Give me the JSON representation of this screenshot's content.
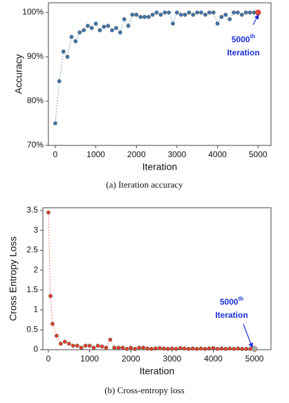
{
  "chart_data": [
    {
      "type": "line",
      "caption": "(a) Iteration accuracy",
      "xlabel": "Iteration",
      "ylabel": "Accuracy",
      "x": [
        0,
        100,
        200,
        300,
        400,
        500,
        600,
        700,
        800,
        900,
        1000,
        1100,
        1200,
        1300,
        1400,
        1500,
        1600,
        1700,
        1800,
        1900,
        2000,
        2100,
        2200,
        2300,
        2400,
        2500,
        2600,
        2700,
        2800,
        2900,
        3000,
        3100,
        3200,
        3300,
        3400,
        3500,
        3600,
        3700,
        3800,
        3900,
        4000,
        4100,
        4200,
        4300,
        4400,
        4500,
        4600,
        4700,
        4800,
        4900,
        5000
      ],
      "values": [
        75,
        84.5,
        91.2,
        90,
        94.5,
        93.5,
        95.5,
        96,
        97,
        96.5,
        97.5,
        96,
        96.8,
        97,
        96,
        96.5,
        95.5,
        98.5,
        97,
        99.5,
        99.5,
        99,
        99,
        99,
        99.5,
        100,
        99.5,
        100,
        100,
        97.5,
        100,
        99.5,
        99.5,
        100,
        99.5,
        100,
        100,
        99.5,
        100,
        100,
        97.5,
        99,
        99.5,
        98.5,
        100,
        100,
        99.5,
        100,
        100,
        100,
        100
      ],
      "color": "#3f77ad",
      "highlight_color": "#e04a3a",
      "xlim": [
        -170,
        5320
      ],
      "xticks": [
        0,
        1000,
        2000,
        3000,
        4000,
        5000
      ],
      "ylim": [
        70,
        102.2
      ],
      "yticks": [
        {
          "value": 70,
          "label": "70%"
        },
        {
          "value": 80,
          "label": "80%"
        },
        {
          "value": 90,
          "label": "90%"
        },
        {
          "value": 100,
          "label": "100%"
        }
      ],
      "annotation": {
        "number": "5000",
        "superscript": "th",
        "text": "Iteration"
      }
    },
    {
      "type": "line",
      "caption": "(b) Cross-entropy loss",
      "xlabel": "Iteration",
      "ylabel": "Cross Entropy Loss",
      "x": [
        0,
        50,
        100,
        200,
        300,
        400,
        500,
        600,
        700,
        800,
        900,
        1000,
        1100,
        1200,
        1300,
        1400,
        1500,
        1600,
        1700,
        1800,
        1900,
        2000,
        2100,
        2200,
        2300,
        2400,
        2500,
        2600,
        2700,
        2800,
        2900,
        3000,
        3100,
        3200,
        3300,
        3400,
        3500,
        3600,
        3700,
        3800,
        3900,
        4000,
        4100,
        4200,
        4300,
        4400,
        4500,
        4600,
        4700,
        4800,
        4900,
        5000
      ],
      "values": [
        3.45,
        1.35,
        0.65,
        0.35,
        0.15,
        0.2,
        0.15,
        0.1,
        0.1,
        0.05,
        0.1,
        0.1,
        0.05,
        0.1,
        0.08,
        0.05,
        0.25,
        0.05,
        0.05,
        0.05,
        0.02,
        0.05,
        0.02,
        0.05,
        0.05,
        0.03,
        0.02,
        0.03,
        0.04,
        0.03,
        0.02,
        0.03,
        0.02,
        0.04,
        0.03,
        0.02,
        0.03,
        0.02,
        0.03,
        0.02,
        0.03,
        0.04,
        0.02,
        0.03,
        0.02,
        0.03,
        0.02,
        0.03,
        0.02,
        0.02,
        0.02,
        0.02
      ],
      "color": "#e0442a",
      "highlight_color": "#a7b0a0",
      "xlim": [
        -134,
        5400
      ],
      "xticks": [
        0,
        1000,
        2000,
        3000,
        4000,
        5000
      ],
      "ylim": [
        0,
        3.57
      ],
      "yticks": [
        0,
        0.5,
        1,
        1.5,
        2,
        2.5,
        3,
        3.5
      ],
      "annotation": {
        "number": "5000",
        "superscript": "th",
        "text": "Iteration"
      }
    }
  ]
}
